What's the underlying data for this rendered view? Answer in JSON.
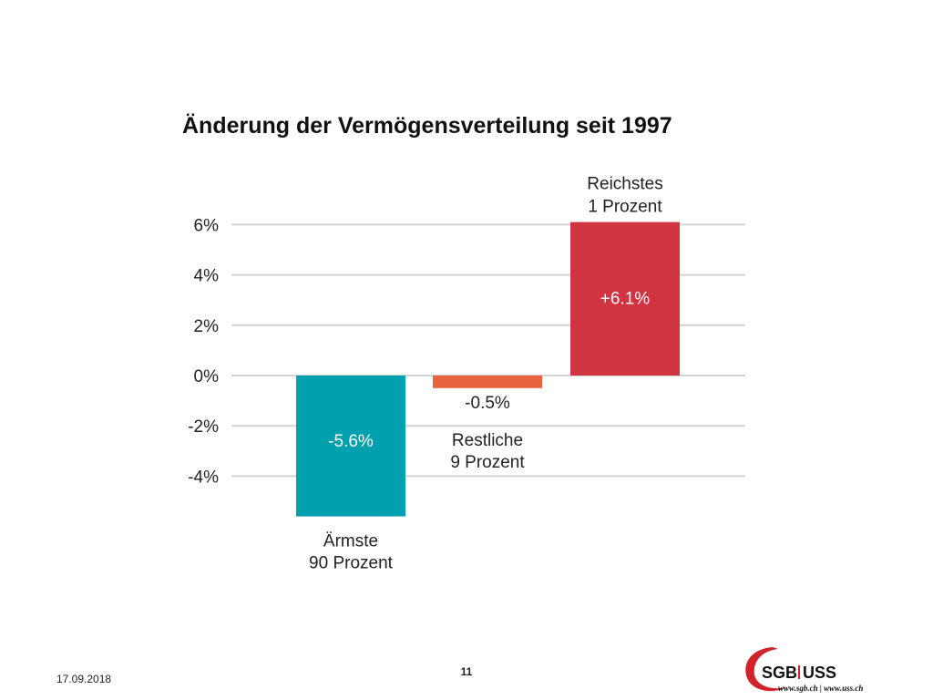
{
  "slide": {
    "date": "17.09.2018",
    "page_number": "11"
  },
  "logo": {
    "brand_sgb": "SGB",
    "brand_uss": "USS",
    "urls": "www.sgb.ch | www.uss.ch",
    "colors": {
      "red": "#d2232a",
      "dark": "#111111"
    }
  },
  "chart_data": {
    "type": "bar",
    "title": "Änderung der Vermögensverteilung seit 1997",
    "categories": [
      {
        "line1": "Ärmste",
        "line2": "90 Prozent"
      },
      {
        "line1": "Restliche",
        "line2": "9 Prozent"
      },
      {
        "line1": "Reichstes",
        "line2": "1 Prozent"
      }
    ],
    "values": [
      -5.6,
      -0.5,
      6.1
    ],
    "value_labels": [
      "-5.6%",
      "-0.5%",
      "+6.1%"
    ],
    "colors": [
      "#00a0ae",
      "#e8633e",
      "#d03440"
    ],
    "yticks": [
      6,
      4,
      2,
      0,
      -2,
      -4
    ],
    "ytick_labels": [
      "6%",
      "4%",
      "2%",
      "0%",
      "-2%",
      "-4%"
    ],
    "ylim": [
      -5.6,
      6.1
    ],
    "grid": true
  }
}
